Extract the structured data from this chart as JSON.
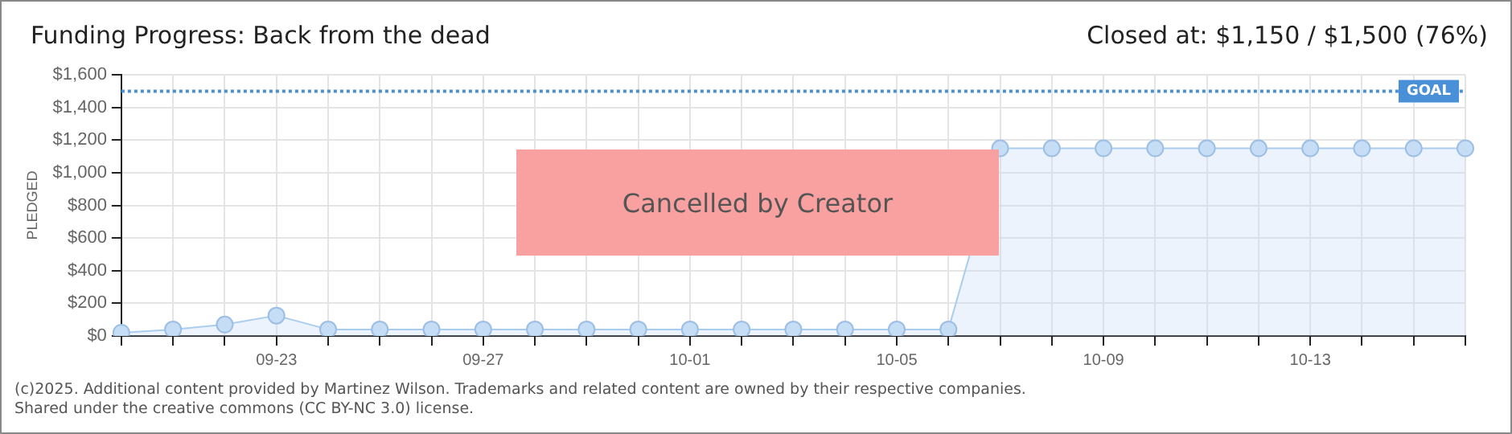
{
  "chart_data": {
    "type": "area",
    "title": "Funding Progress: Back from the dead",
    "subtitle": "Closed at:  $1,150 /  $1,500 (76%)",
    "ylabel": "PLEDGED",
    "categories": [
      null,
      null,
      null,
      "09-23",
      null,
      null,
      null,
      "09-27",
      null,
      null,
      null,
      "10-01",
      null,
      null,
      null,
      "10-05",
      null,
      null,
      null,
      "10-09",
      null,
      null,
      null,
      "10-13",
      null,
      null,
      null
    ],
    "series": [
      {
        "color": "#a9cdef",
        "values": [
          20,
          40,
          70,
          125,
          40,
          40,
          40,
          40,
          40,
          40,
          40,
          40,
          40,
          40,
          40,
          40,
          40,
          1150,
          1150,
          1150,
          1150,
          1150,
          1150,
          1150,
          1150,
          1150,
          1150
        ]
      }
    ],
    "ylim": [
      0,
      1600
    ],
    "yticks": [
      {
        "value": 0,
        "label": "$0"
      },
      {
        "value": 200,
        "label": "$200"
      },
      {
        "value": 400,
        "label": "$400"
      },
      {
        "value": 600,
        "label": "$600"
      },
      {
        "value": 800,
        "label": "$800"
      },
      {
        "value": 1000,
        "label": "$1,000"
      },
      {
        "value": 1200,
        "label": "$1,200"
      },
      {
        "value": 1400,
        "label": "$1,400"
      },
      {
        "value": 1600,
        "label": "$1,600"
      }
    ],
    "grid": true,
    "legend": false,
    "marker": "circle",
    "ref_lines": [
      {
        "axis": "y",
        "value": 1500,
        "label": "GOAL",
        "color": "#4a90d9",
        "line_style": "dotted"
      }
    ],
    "annotations": [
      "Cancelled by Creator",
      "(c)2025. Additional content provided by Martinez Wilson. Trademarks and related content are owned by their respective companies.",
      "Shared under the creative commons (CC BY-NC 3.0) license."
    ]
  }
}
